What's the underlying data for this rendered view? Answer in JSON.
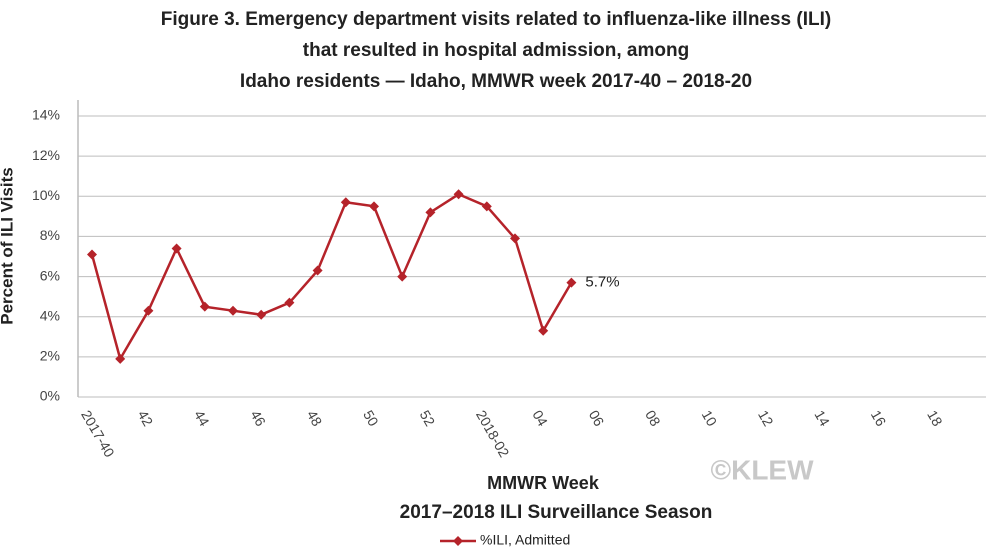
{
  "chart_data": {
    "type": "line",
    "title": [
      "Figure 3. Emergency department visits related to influenza-like illness (ILI)",
      "that resulted in hospital admission, among",
      "Idaho residents — Idaho, MMWR week 2017-40 – 2018-20"
    ],
    "y_label": "Percent of ILI Visits",
    "x_label": "MMWR Week",
    "subtitle": "2017–2018 ILI Surveillance Season",
    "watermark": "©KLEW",
    "categories": [
      "2017-40",
      null,
      "42",
      null,
      "44",
      null,
      "46",
      null,
      "48",
      null,
      "50",
      null,
      "52",
      null,
      "2018-02",
      null,
      "04",
      null,
      "06",
      null,
      "08",
      null,
      "10",
      null,
      "12",
      null,
      "14",
      null,
      "16",
      null,
      "18",
      null
    ],
    "series": [
      {
        "name": "%ILI, Admitted",
        "color": "#b5232a",
        "values": [
          7.1,
          1.9,
          4.3,
          7.4,
          4.5,
          4.3,
          4.1,
          4.7,
          6.3,
          9.7,
          9.5,
          6.0,
          9.2,
          10.1,
          9.5,
          7.9,
          3.3,
          5.7,
          null,
          null,
          null,
          null,
          null,
          null,
          null,
          null,
          null,
          null,
          null,
          null,
          null,
          null
        ],
        "value_labels": [
          null,
          null,
          null,
          null,
          null,
          null,
          null,
          null,
          null,
          null,
          null,
          null,
          null,
          null,
          null,
          null,
          null,
          "5.7%",
          null,
          null,
          null,
          null,
          null,
          null,
          null,
          null,
          null,
          null,
          null,
          null,
          null,
          null
        ]
      }
    ],
    "ylim": [
      0,
      14
    ],
    "yticks": [
      {
        "value": 0,
        "label": "0%"
      },
      {
        "value": 2,
        "label": "2%"
      },
      {
        "value": 4,
        "label": "4%"
      },
      {
        "value": 6,
        "label": "6%"
      },
      {
        "value": 8,
        "label": "8%"
      },
      {
        "value": 10,
        "label": "10%"
      },
      {
        "value": 12,
        "label": "12%"
      },
      {
        "value": 14,
        "label": "14%"
      }
    ],
    "grid": true
  }
}
